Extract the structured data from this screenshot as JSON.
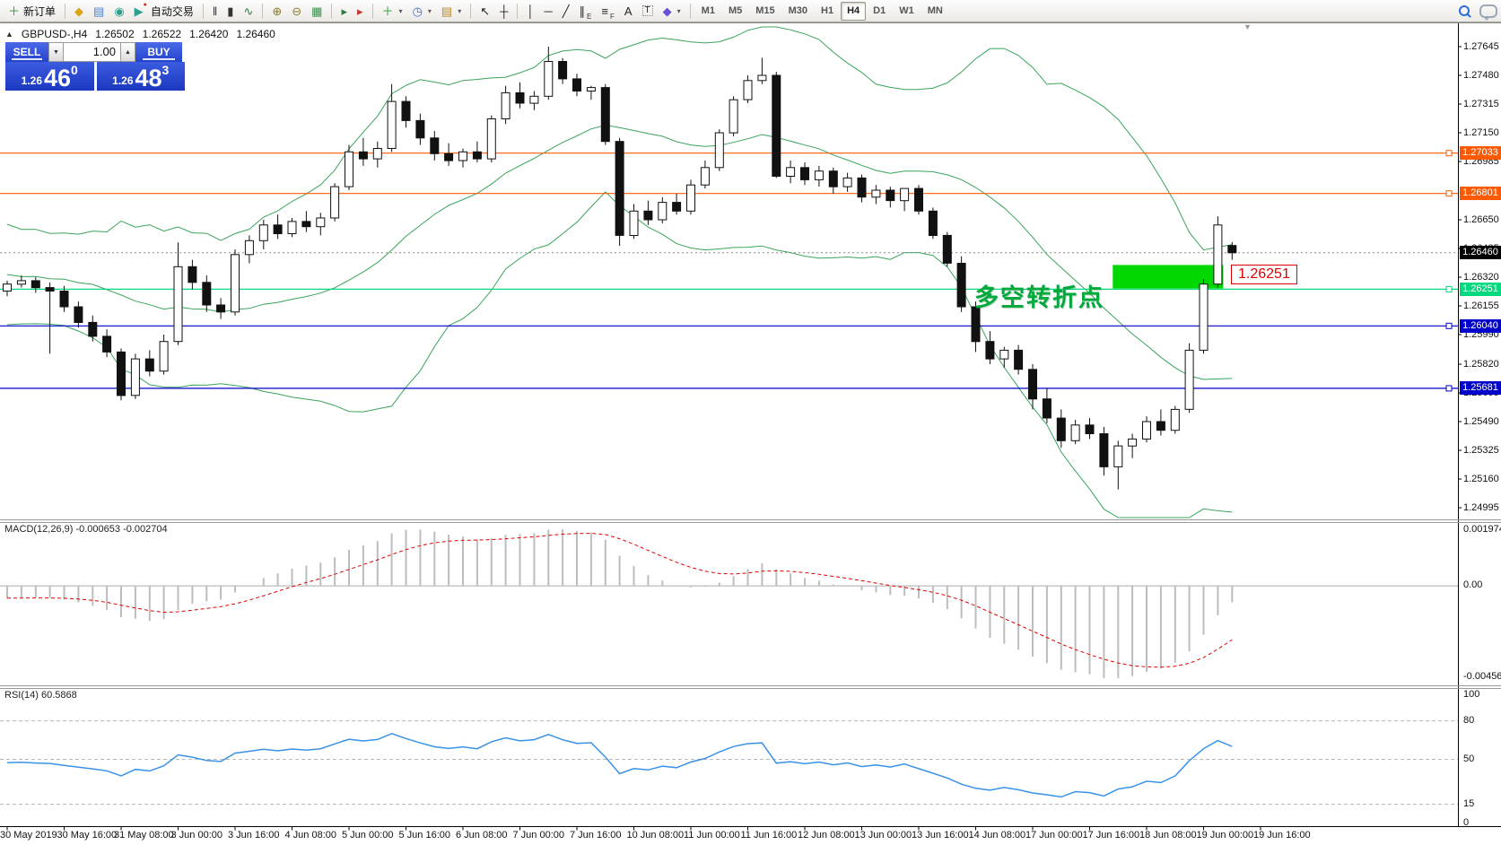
{
  "toolbar": {
    "dropdown_glyph": "▾",
    "items": [
      {
        "name": "new-order-button",
        "glyph": "＋",
        "glyph_color": "#1f9d2f",
        "label": "新订单"
      },
      {
        "type": "sep"
      },
      {
        "name": "market-watch-icon",
        "glyph": "◆",
        "glyph_color": "#d9a514"
      },
      {
        "name": "data-window-icon",
        "glyph": "▤",
        "glyph_color": "#4a7fd4"
      },
      {
        "name": "signals-icon",
        "glyph": "◉",
        "glyph_color": "#2ba08f"
      },
      {
        "name": "auto-trading-button",
        "glyph": "▶",
        "glyph_color": "#2ba08f",
        "label": "自动交易",
        "badge": "●",
        "badge_color": "#d42a1e"
      },
      {
        "type": "sep"
      },
      {
        "name": "bar-chart-button",
        "glyph": "ǁ",
        "glyph_color": "#333333"
      },
      {
        "name": "candlestick-chart-button",
        "glyph": "▮",
        "glyph_color": "#333333"
      },
      {
        "name": "line-chart-button",
        "glyph": "∿",
        "glyph_color": "#2c7b3f"
      },
      {
        "type": "sep"
      },
      {
        "name": "zoom-in-button",
        "glyph": "⊕",
        "glyph_color": "#8a7a30"
      },
      {
        "name": "zoom-out-button",
        "glyph": "⊖",
        "glyph_color": "#8a7a30"
      },
      {
        "name": "tile-windows-button",
        "glyph": "▦",
        "glyph_color": "#3f8f4f"
      },
      {
        "type": "sep"
      },
      {
        "name": "auto-scroll-button",
        "glyph": "▸",
        "glyph_color": "#2c7b3f"
      },
      {
        "name": "chart-shift-button",
        "glyph": "▸",
        "glyph_color": "#c23b2e"
      },
      {
        "type": "sep"
      },
      {
        "name": "indicators-button",
        "glyph": "＋",
        "glyph_color": "#1f9d2f",
        "dropdown": true
      },
      {
        "name": "periods-button",
        "glyph": "◷",
        "glyph_color": "#3a6fd0",
        "dropdown": true
      },
      {
        "name": "templates-button",
        "glyph": "▤",
        "glyph_color": "#b58a2a",
        "dropdown": true
      },
      {
        "type": "sep"
      },
      {
        "name": "cursor-button",
        "glyph": "↖",
        "glyph_color": "#222222"
      },
      {
        "name": "crosshair-button",
        "glyph": "┼",
        "glyph_color": "#222222"
      },
      {
        "type": "sep"
      },
      {
        "name": "vertical-line-button",
        "glyph": "│",
        "glyph_color": "#222222"
      },
      {
        "name": "horizontal-line-button",
        "glyph": "─",
        "glyph_color": "#222222"
      },
      {
        "name": "trendline-button",
        "glyph": "╱",
        "glyph_color": "#222222"
      },
      {
        "name": "equidistant-channel-button",
        "glyph": "∥",
        "glyph_color": "#222222",
        "sub": "E"
      },
      {
        "name": "fibonacci-button",
        "glyph": "≡",
        "glyph_color": "#222222",
        "sub": "F"
      },
      {
        "name": "text-button",
        "glyph": "A",
        "glyph_color": "#222222"
      },
      {
        "name": "text-label-button",
        "glyph": "T",
        "glyph_color": "#222222",
        "boxed": true
      },
      {
        "name": "arrows-button",
        "glyph": "◆",
        "glyph_color": "#6a4fd0",
        "dropdown": true
      },
      {
        "type": "sep"
      }
    ],
    "timeframes": [
      "M1",
      "M5",
      "M15",
      "M30",
      "H1",
      "H4",
      "D1",
      "W1",
      "MN"
    ],
    "active_timeframe": "H4"
  },
  "chart": {
    "collapse_arrow": "▲",
    "symbol_info": {
      "symbol": "GBPUSD-,H4",
      "open": "1.26502",
      "high": "1.26522",
      "low": "1.26420",
      "close": "1.26460"
    },
    "trade_panel": {
      "sell_label": "SELL",
      "buy_label": "BUY",
      "volume": "1.00",
      "stepper_down_glyph": "▼",
      "stepper_up_glyph": "▲",
      "sell_price_prefix": "1.26",
      "sell_price_big": "46",
      "sell_price_sup": "0",
      "buy_price_prefix": "1.26",
      "buy_price_big": "48",
      "buy_price_sup": "3"
    },
    "annotation_text": "多空转折点",
    "annotation_price_label": "1.26251",
    "shift_marker_glyph": "▼"
  },
  "macd_panel": {
    "label": "MACD(12,26,9) -0.000653 -0.002704",
    "axis_labels": [
      "0.001974",
      "0.00",
      "-0.004564"
    ]
  },
  "rsi_panel": {
    "label": "RSI(14) 60.5868",
    "axis_labels": [
      "100",
      "80",
      "50",
      "15",
      "0"
    ],
    "levels": [
      80,
      50,
      15
    ]
  },
  "chart_data": {
    "type": "candlestick",
    "symbol": "GBPUSD",
    "timeframe": "H4",
    "unit_note": "price = 1.2 + value/100000",
    "candles": [
      [
        6240,
        6300,
        6210,
        6280
      ],
      [
        6280,
        6330,
        6260,
        6300
      ],
      [
        6300,
        6320,
        6230,
        6260
      ],
      [
        6260,
        6290,
        5880,
        6240
      ],
      [
        6240,
        6270,
        6120,
        6150
      ],
      [
        6150,
        6180,
        6030,
        6060
      ],
      [
        6060,
        6100,
        5950,
        5980
      ],
      [
        5980,
        6020,
        5860,
        5890
      ],
      [
        5890,
        5910,
        5612,
        5640
      ],
      [
        5640,
        5880,
        5620,
        5850
      ],
      [
        5850,
        5900,
        5750,
        5780
      ],
      [
        5780,
        5990,
        5760,
        5950
      ],
      [
        5950,
        6520,
        5930,
        6380
      ],
      [
        6380,
        6420,
        6250,
        6290
      ],
      [
        6290,
        6330,
        6120,
        6160
      ],
      [
        6160,
        6200,
        6080,
        6120
      ],
      [
        6120,
        6480,
        6100,
        6450
      ],
      [
        6450,
        6560,
        6400,
        6530
      ],
      [
        6530,
        6650,
        6480,
        6620
      ],
      [
        6620,
        6680,
        6540,
        6570
      ],
      [
        6570,
        6660,
        6550,
        6640
      ],
      [
        6640,
        6700,
        6580,
        6610
      ],
      [
        6610,
        6690,
        6560,
        6660
      ],
      [
        6660,
        6860,
        6640,
        6840
      ],
      [
        6840,
        7080,
        6820,
        7040
      ],
      [
        7040,
        7120,
        6960,
        7000
      ],
      [
        7000,
        7100,
        6950,
        7060
      ],
      [
        7060,
        7430,
        7040,
        7330
      ],
      [
        7330,
        7360,
        7180,
        7220
      ],
      [
        7220,
        7260,
        7080,
        7120
      ],
      [
        7120,
        7160,
        6990,
        7030
      ],
      [
        7030,
        7090,
        6960,
        6990
      ],
      [
        6990,
        7060,
        6950,
        7040
      ],
      [
        7040,
        7100,
        6980,
        7000
      ],
      [
        7000,
        7250,
        6980,
        7230
      ],
      [
        7230,
        7420,
        7200,
        7380
      ],
      [
        7380,
        7440,
        7290,
        7320
      ],
      [
        7320,
        7390,
        7280,
        7360
      ],
      [
        7360,
        7645,
        7340,
        7560
      ],
      [
        7560,
        7580,
        7430,
        7460
      ],
      [
        7460,
        7490,
        7360,
        7390
      ],
      [
        7390,
        7420,
        7340,
        7410
      ],
      [
        7410,
        7430,
        7080,
        7100
      ],
      [
        7100,
        7120,
        6500,
        6560
      ],
      [
        6560,
        6740,
        6540,
        6700
      ],
      [
        6700,
        6760,
        6620,
        6650
      ],
      [
        6650,
        6780,
        6630,
        6750
      ],
      [
        6750,
        6800,
        6680,
        6700
      ],
      [
        6700,
        6880,
        6680,
        6850
      ],
      [
        6850,
        6990,
        6830,
        6950
      ],
      [
        6950,
        7170,
        6930,
        7150
      ],
      [
        7150,
        7360,
        7130,
        7340
      ],
      [
        7340,
        7480,
        7320,
        7450
      ],
      [
        7450,
        7581,
        7430,
        7480
      ],
      [
        7480,
        7500,
        6890,
        6900
      ],
      [
        6900,
        6990,
        6860,
        6950
      ],
      [
        6950,
        6980,
        6850,
        6880
      ],
      [
        6880,
        6960,
        6840,
        6930
      ],
      [
        6930,
        6950,
        6800,
        6840
      ],
      [
        6840,
        6920,
        6810,
        6890
      ],
      [
        6890,
        6910,
        6750,
        6780
      ],
      [
        6780,
        6850,
        6740,
        6820
      ],
      [
        6820,
        6840,
        6720,
        6760
      ],
      [
        6760,
        6830,
        6700,
        6830
      ],
      [
        6830,
        6850,
        6680,
        6700
      ],
      [
        6700,
        6720,
        6540,
        6560
      ],
      [
        6560,
        6580,
        6380,
        6400
      ],
      [
        6400,
        6440,
        6120,
        6150
      ],
      [
        6150,
        6180,
        5890,
        5950
      ],
      [
        5950,
        6010,
        5820,
        5850
      ],
      [
        5850,
        5920,
        5800,
        5900
      ],
      [
        5900,
        5930,
        5760,
        5790
      ],
      [
        5790,
        5820,
        5560,
        5620
      ],
      [
        5620,
        5680,
        5480,
        5510
      ],
      [
        5510,
        5560,
        5340,
        5380
      ],
      [
        5380,
        5500,
        5360,
        5470
      ],
      [
        5470,
        5510,
        5390,
        5420
      ],
      [
        5420,
        5460,
        5180,
        5230
      ],
      [
        5230,
        5380,
        5100,
        5350
      ],
      [
        5350,
        5420,
        5280,
        5390
      ],
      [
        5390,
        5520,
        5370,
        5490
      ],
      [
        5490,
        5560,
        5410,
        5440
      ],
      [
        5440,
        5580,
        5420,
        5560
      ],
      [
        5560,
        5940,
        5540,
        5900
      ],
      [
        5900,
        6310,
        5880,
        6280
      ],
      [
        6280,
        6670,
        6260,
        6620
      ],
      [
        6502,
        6522,
        6420,
        6460
      ]
    ],
    "bollinger": {
      "period": 20,
      "deviation": 2
    },
    "bollinger_seed": [
      6550,
      6250,
      6500,
      6200,
      6450,
      6180,
      6500,
      6250,
      6550,
      6200,
      6450,
      6150,
      6500,
      6200,
      6450,
      6150,
      6400,
      6150,
      6350
    ],
    "macd_params": [
      12,
      26,
      9
    ],
    "rsi_params": 14,
    "current_price": 6460,
    "current_price_label": "1.26460",
    "price_ticks": [
      "1.27645",
      "1.27480",
      "1.27315",
      "1.27150",
      "1.26985",
      "1.26650",
      "1.26485",
      "1.26320",
      "1.26155",
      "1.25990",
      "1.25820",
      "1.25655",
      "1.25490",
      "1.25325",
      "1.25160",
      "1.24995"
    ],
    "hlines": [
      {
        "label": "1.27033",
        "price": 7033,
        "color": "#ff5a00"
      },
      {
        "label": "1.26801",
        "price": 6801,
        "color": "#ff5a00"
      },
      {
        "label": "1.26251",
        "price": 6251,
        "color": "#00d97e"
      },
      {
        "label": "1.26040",
        "price": 6040,
        "color": "#0000cc"
      },
      {
        "label": "1.25681",
        "price": 5681,
        "color": "#0000cc"
      }
    ],
    "highlight_rect": {
      "from_bar": 78,
      "to_bar": 85,
      "top_price": 6390,
      "bottom_price": 6255,
      "color": "#00d800"
    },
    "time_labels": [
      "30 May 2019",
      "30 May 16:00",
      "31 May 08:00",
      "3 Jun 00:00",
      "3 Jun 16:00",
      "4 Jun 08:00",
      "5 Jun 00:00",
      "5 Jun 16:00",
      "6 Jun 08:00",
      "7 Jun 00:00",
      "7 Jun 16:00",
      "10 Jun 08:00",
      "11 Jun 00:00",
      "11 Jun 16:00",
      "12 Jun 08:00",
      "13 Jun 00:00",
      "13 Jun 16:00",
      "14 Jun 08:00",
      "17 Jun 00:00",
      "17 Jun 16:00",
      "18 Jun 08:00",
      "19 Jun 00:00",
      "19 Jun 16:00"
    ],
    "bars_per_time_label": 4,
    "colors": {
      "bollinger": "#3aa45c",
      "bull": "#ffffff",
      "bear": "#111111",
      "outline": "#111111",
      "macd_bar": "#bdbdbd",
      "macd_signal": "#e00000",
      "rsi_line": "#3a92e8",
      "level_dash": "#b8b8b8",
      "bid_line": "#888888",
      "badge_text": "#ffffff",
      "current_badge": "#000000"
    }
  }
}
